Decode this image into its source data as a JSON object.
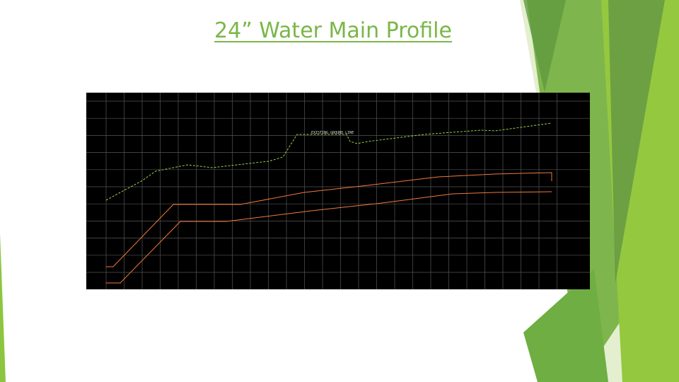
{
  "slide": {
    "title": "24” Water Main Profile",
    "drawing": {
      "annotation": "EXISTING GROUND LINE"
    }
  }
}
